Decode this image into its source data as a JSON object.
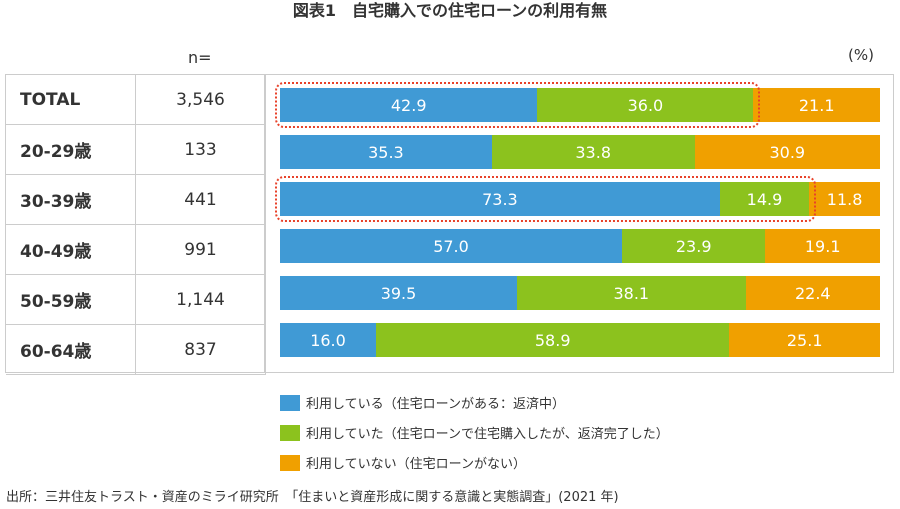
{
  "title": "図表1　自宅購入での住宅ローンの利用有無",
  "n_label": "n=",
  "unit_label": "(%)",
  "colors": {
    "using": "#409ad5",
    "used": "#8cc21e",
    "not_used": "#f0a000",
    "highlight": "#e8422a"
  },
  "chart_data": {
    "type": "bar",
    "stacked": true,
    "orientation": "horizontal",
    "categories": [
      "TOTAL",
      "20-29歳",
      "30-39歳",
      "40-49歳",
      "50-59歳",
      "60-64歳"
    ],
    "n": [
      "3,546",
      "133",
      "441",
      "991",
      "1,144",
      "837"
    ],
    "series": [
      {
        "name": "利用している（住宅ローンがある：返済中）",
        "values": [
          42.9,
          35.3,
          73.3,
          57.0,
          39.5,
          16.0
        ]
      },
      {
        "name": "利用していた（住宅ローンで住宅購入したが、返済完了した）",
        "values": [
          36.0,
          33.8,
          14.9,
          23.9,
          38.1,
          58.9
        ]
      },
      {
        "name": "利用していない（住宅ローンがない）",
        "values": [
          21.1,
          30.9,
          11.8,
          19.1,
          22.4,
          25.1
        ]
      }
    ],
    "xlim": [
      0,
      100
    ],
    "highlighted_rows": [
      "TOTAL",
      "30-39歳"
    ],
    "legend": "bottom"
  },
  "source": "出所：三井住友トラスト・資産のミライ研究所　「住まいと資産形成に関する意識と実態調査」(2021 年)"
}
